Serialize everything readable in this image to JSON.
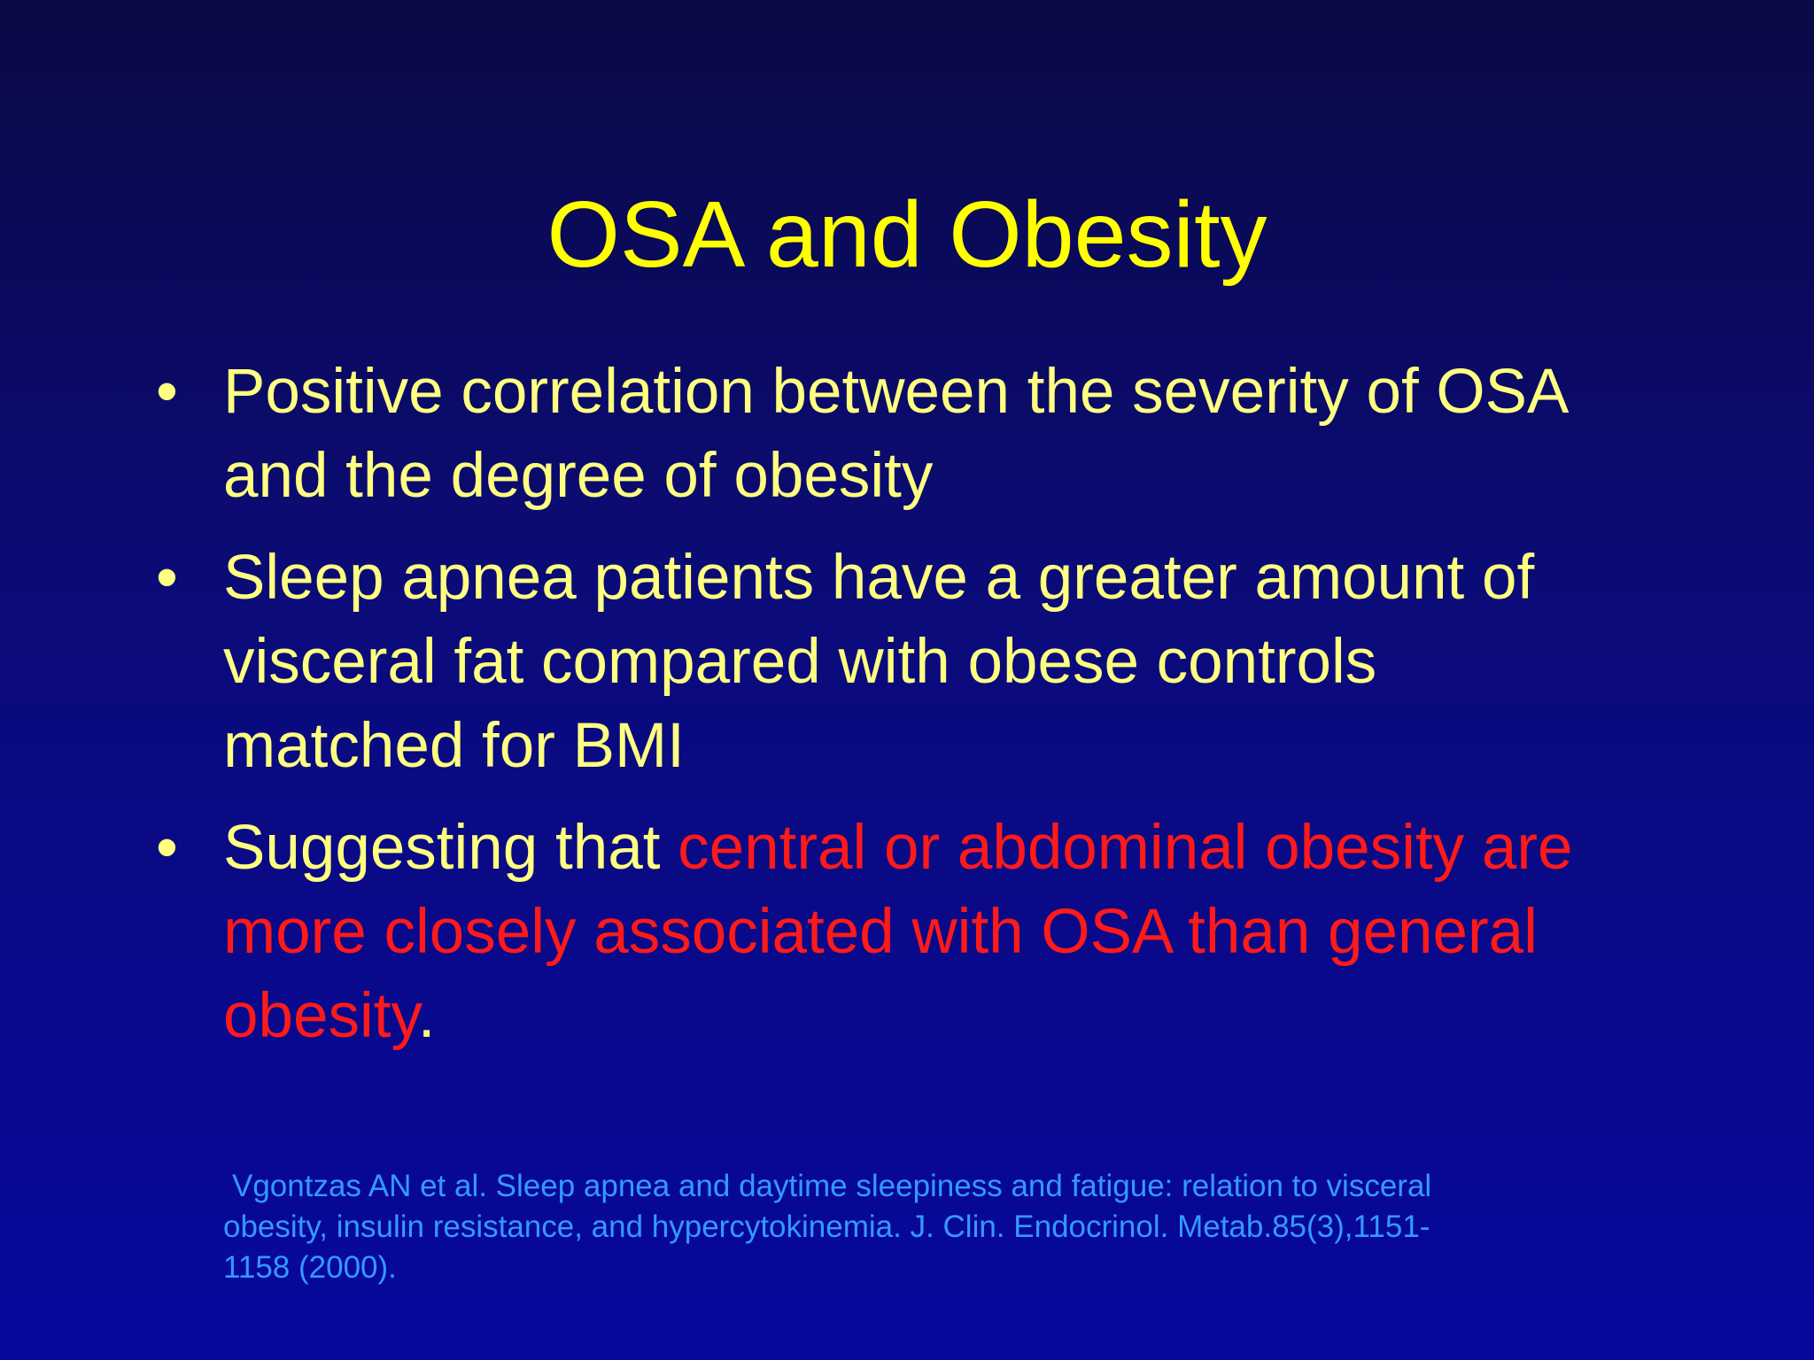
{
  "title": "OSA and Obesity",
  "bullets": [
    {
      "segments": [
        {
          "text": "Positive correlation between the severity of OSA and the degree of obesity",
          "color": "#ffff80"
        }
      ]
    },
    {
      "segments": [
        {
          "text": "Sleep apnea patients have a greater amount of visceral fat compared with obese controls matched for BMI",
          "color": "#ffff80"
        }
      ]
    },
    {
      "segments": [
        {
          "text": "Suggesting that ",
          "color": "#ffff80"
        },
        {
          "text": "central or abdominal obesity are more closely associated with OSA than general obesity",
          "color": "#ff1a1a"
        },
        {
          "text": ".",
          "color": "#ffff80"
        }
      ]
    }
  ],
  "citation": {
    "lines": [
      "Vgontzas AN et al. Sleep apnea and daytime sleepiness and fatigue: relation to visceral",
      "obesity, insulin resistance, and hypercytokinemia. J. Clin. Endocrinol. Metab.85(3),1151-",
      "1158 (2000)."
    ]
  }
}
